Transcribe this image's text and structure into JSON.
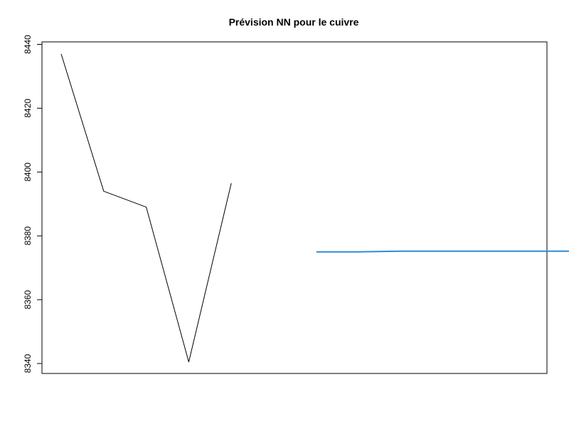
{
  "chart_data": {
    "type": "line",
    "title": "Prévision NN pour le cuivre",
    "xlabel": "",
    "ylabel": "",
    "xlim": [
      1,
      13
    ],
    "ylim": [
      8336,
      8440
    ],
    "yticks": [
      8340,
      8360,
      8380,
      8400,
      8420,
      8440
    ],
    "grid": false,
    "series": [
      {
        "color": "#000000",
        "x": [
          1,
          2,
          3,
          4,
          5
        ],
        "y": [
          8437,
          8394,
          8389,
          8340.5,
          8396.5
        ]
      },
      {
        "color": "#2b8cd8",
        "x": [
          7,
          8,
          9,
          10,
          11,
          12,
          13
        ],
        "y": [
          8375,
          8375,
          8375.2,
          8375.2,
          8375.2,
          8375.2,
          8375.2
        ]
      }
    ]
  }
}
